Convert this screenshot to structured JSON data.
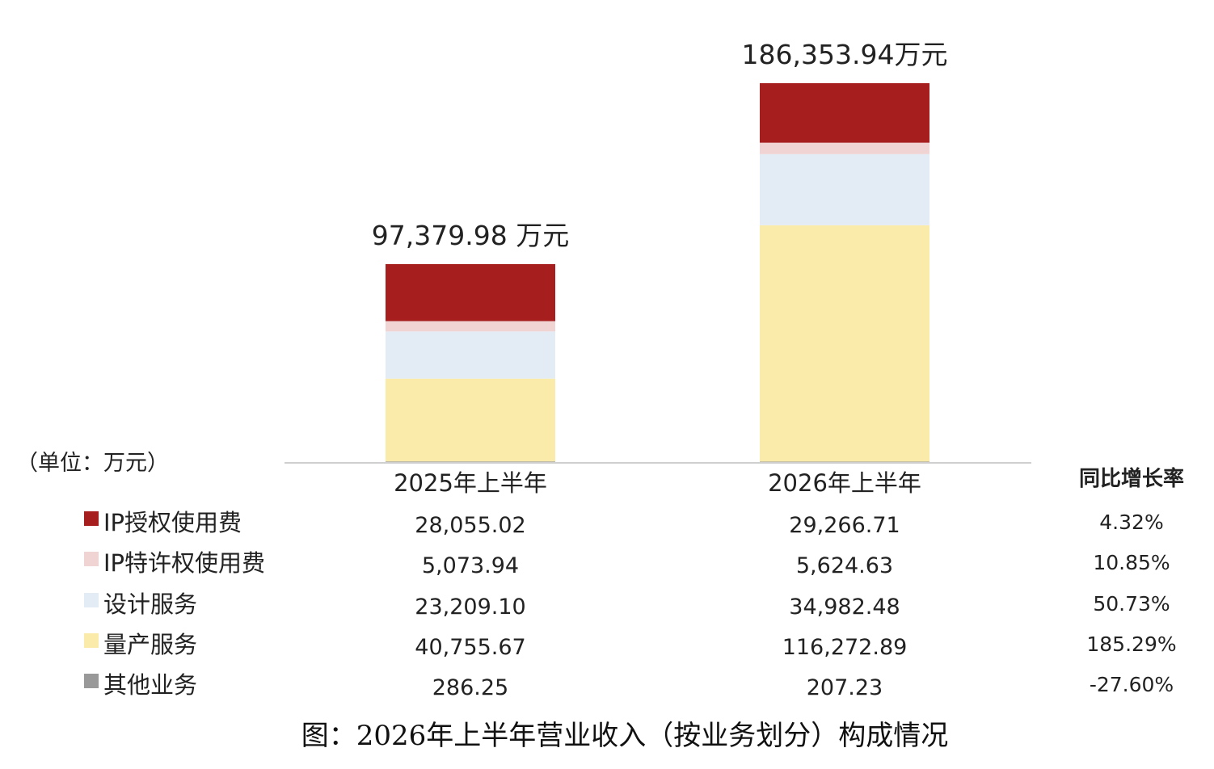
{
  "chart_data": {
    "type": "bar",
    "stacked": true,
    "title": "图：2026年上半年营业收入（按业务划分）构成情况",
    "unit_label": "（单位：万元）",
    "categories": [
      "2025年上半年",
      "2026年上半年"
    ],
    "totals": [
      "97,379.98 万元",
      "186,353.94万元"
    ],
    "total_values": [
      97379.98,
      186353.94
    ],
    "growth_header": "同比增长率",
    "series": [
      {
        "name": "IP授权使用费",
        "color": "#a61e1e",
        "values": [
          28055.02,
          29266.71
        ],
        "labels": [
          "28,055.02",
          "29,266.71"
        ],
        "growth": "4.32%"
      },
      {
        "name": "IP特许权使用费",
        "color": "#f0d4d3",
        "values": [
          5073.94,
          5624.63
        ],
        "labels": [
          "5,073.94",
          "5,624.63"
        ],
        "growth": "10.85%"
      },
      {
        "name": "设计服务",
        "color": "#e3ebf4",
        "values": [
          23209.1,
          34982.48
        ],
        "labels": [
          "23,209.10",
          "34,982.48"
        ],
        "growth": "50.73%"
      },
      {
        "name": "量产服务",
        "color": "#fbebab",
        "values": [
          40755.67,
          116272.89
        ],
        "labels": [
          "40,755.67",
          "116,272.89"
        ],
        "growth": "185.29%"
      },
      {
        "name": "其他业务",
        "color": "#999999",
        "values": [
          286.25,
          207.23
        ],
        "labels": [
          "286.25",
          "207.23"
        ],
        "growth": "-27.60%"
      }
    ],
    "ylim": [
      0,
      186353.94
    ],
    "grid": false,
    "legend": "table-left"
  }
}
